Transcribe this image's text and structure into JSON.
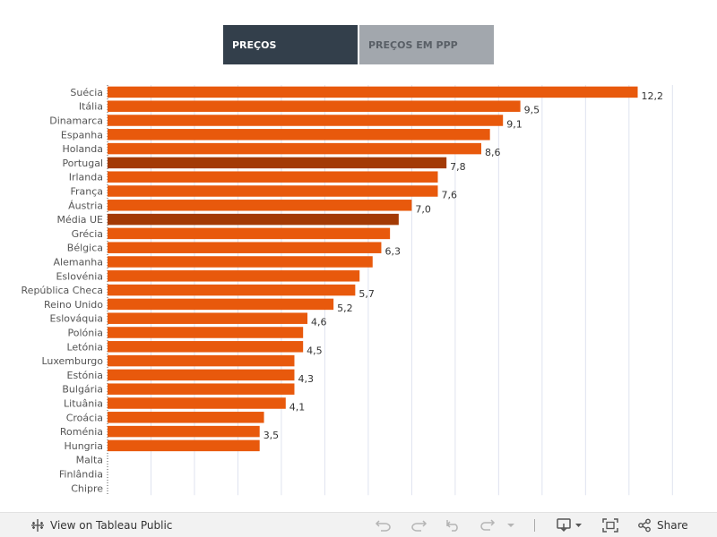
{
  "tabs": {
    "active_label": "PREÇOS",
    "inactive_label": "PREÇOS EM PPP"
  },
  "colors": {
    "bar": "#e8590c",
    "highlight": "#a33a05",
    "grid": "#dfe3ef"
  },
  "chart_data": {
    "type": "bar",
    "orientation": "horizontal",
    "title": "",
    "xlabel": "",
    "ylabel": "",
    "xlim": [
      0,
      13.2
    ],
    "grid": true,
    "highlighted": [
      "Portugal",
      "Média UE"
    ],
    "categories": [
      "Suécia",
      "Itália",
      "Dinamarca",
      "Espanha",
      "Holanda",
      "Portugal",
      "Irlanda",
      "França",
      "Áustria",
      "Média UE",
      "Grécia",
      "Bélgica",
      "Alemanha",
      "Eslovénia",
      "República Checa",
      "Reino Unido",
      "Eslováquia",
      "Polónia",
      "Letónia",
      "Luxemburgo",
      "Estónia",
      "Bulgária",
      "Lituânia",
      "Croácia",
      "Roménia",
      "Hungria",
      "Malta",
      "Finlândia",
      "Chipre"
    ],
    "values": [
      12.2,
      9.5,
      9.1,
      8.8,
      8.6,
      7.8,
      7.6,
      7.6,
      7.0,
      6.7,
      6.5,
      6.3,
      6.1,
      5.8,
      5.7,
      5.2,
      4.6,
      4.5,
      4.5,
      4.3,
      4.3,
      4.3,
      4.1,
      3.6,
      3.5,
      3.5,
      null,
      null,
      null
    ],
    "labels": [
      "12,2",
      "9,5",
      "9,1",
      "",
      "8,6",
      "7,8",
      "",
      "7,6",
      "7,0",
      "",
      "",
      "6,3",
      "",
      "",
      "5,7",
      "5,2",
      "4,6",
      "",
      "4,5",
      "",
      "4,3",
      "",
      "4,1",
      "",
      "3,5",
      "",
      "",
      "",
      ""
    ]
  },
  "footer": {
    "view_label": "View on Tableau Public",
    "share_label": "Share"
  }
}
